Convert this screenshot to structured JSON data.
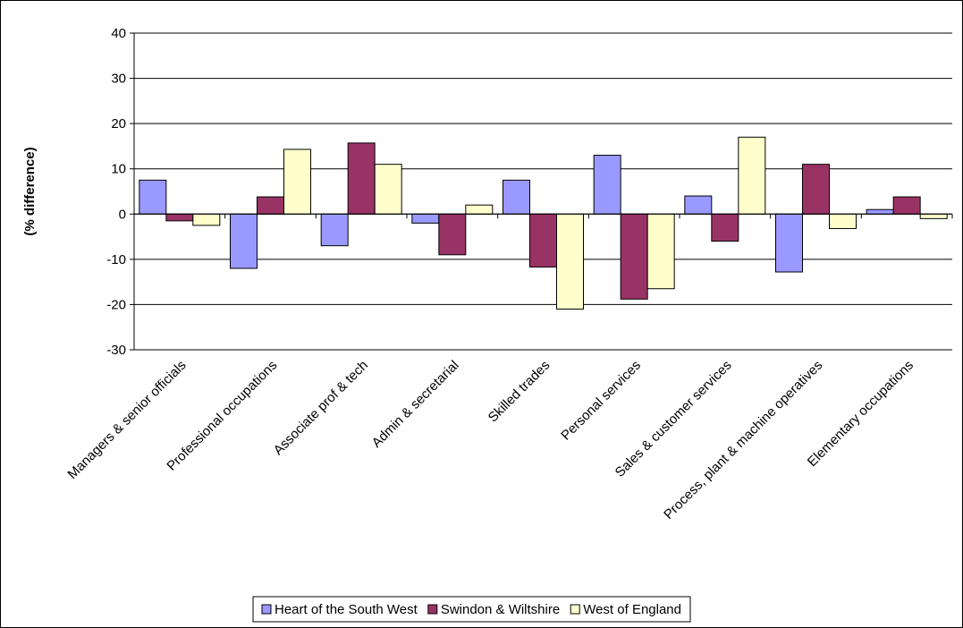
{
  "chart_data": {
    "type": "bar",
    "y_label": "(% difference)",
    "categories": [
      "Managers & senior officials",
      "Professional occupations",
      "Associate prof & tech",
      "Admin & secretarial",
      "Skilled trades",
      "Personal services",
      "Sales & customer services",
      "Process, plant & machine operatives",
      "Elementary occupations"
    ],
    "series": [
      {
        "name": "Heart of the South West",
        "color": "#9999ff",
        "values": [
          7.5,
          -12,
          -7,
          -2,
          7.5,
          13,
          4,
          -12.8,
          1
        ]
      },
      {
        "name": "Swindon & Wiltshire",
        "color": "#993366",
        "values": [
          -1.5,
          3.8,
          15.7,
          -9,
          -11.7,
          -18.8,
          -6,
          11,
          3.8
        ]
      },
      {
        "name": "West of England",
        "color": "#ffffcc",
        "values": [
          -2.5,
          14.3,
          11,
          2,
          -21,
          -16.5,
          17,
          -3.2,
          -1
        ]
      }
    ],
    "ylim": [
      -30,
      40
    ],
    "yticks": [
      -30,
      -20,
      -10,
      0,
      10,
      20,
      30,
      40
    ],
    "grid": true,
    "legend": "bottom"
  }
}
